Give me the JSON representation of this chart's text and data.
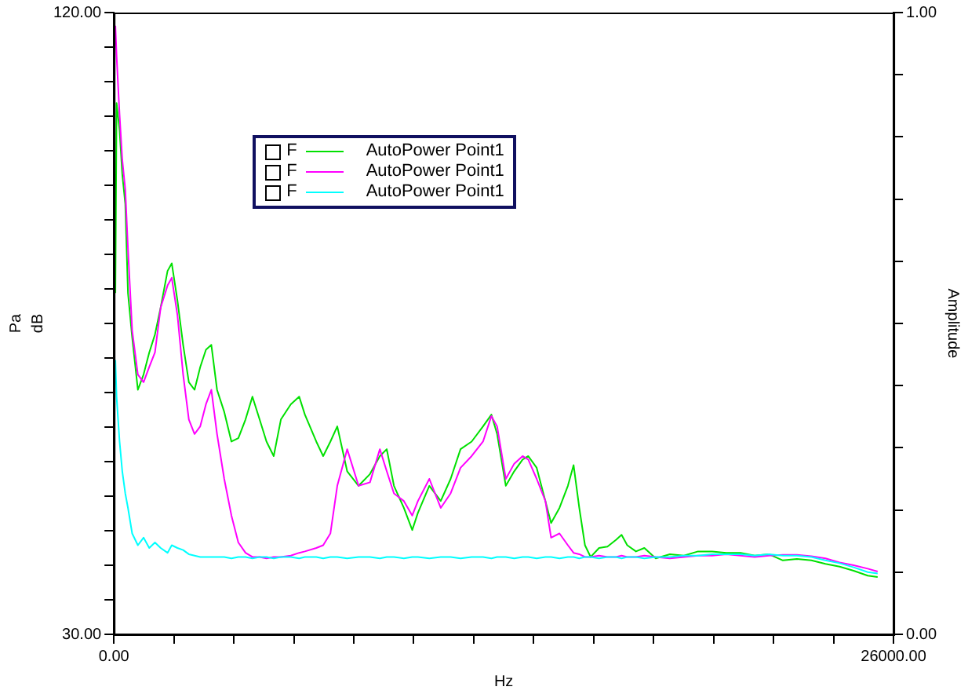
{
  "chart_data": {
    "type": "line",
    "xlabel": "Hz",
    "ylabel": "dB",
    "y2label": "Amplitude",
    "annotations": [
      "Pa",
      "F",
      "F",
      "F"
    ],
    "xlim": [
      0,
      26000
    ],
    "xticks": [
      {
        "value": 0,
        "label": "0.00"
      },
      {
        "value": 2000,
        "label": null
      },
      {
        "value": 4000,
        "label": null
      },
      {
        "value": 6000,
        "label": null
      },
      {
        "value": 8000,
        "label": null
      },
      {
        "value": 10000,
        "label": null
      },
      {
        "value": 12000,
        "label": null
      },
      {
        "value": 14000,
        "label": null
      },
      {
        "value": 16000,
        "label": null
      },
      {
        "value": 18000,
        "label": null
      },
      {
        "value": 20000,
        "label": null
      },
      {
        "value": 22000,
        "label": null
      },
      {
        "value": 24000,
        "label": null
      },
      {
        "value": 26000,
        "label": "26000.00"
      }
    ],
    "ylim": [
      30,
      120
    ],
    "yticks": [
      {
        "value": 30,
        "label": "30.00"
      },
      {
        "value": 35,
        "label": null
      },
      {
        "value": 40,
        "label": null
      },
      {
        "value": 45,
        "label": null
      },
      {
        "value": 50,
        "label": null
      },
      {
        "value": 55,
        "label": null
      },
      {
        "value": 60,
        "label": null
      },
      {
        "value": 65,
        "label": null
      },
      {
        "value": 70,
        "label": null
      },
      {
        "value": 75,
        "label": null
      },
      {
        "value": 80,
        "label": null
      },
      {
        "value": 85,
        "label": null
      },
      {
        "value": 90,
        "label": null
      },
      {
        "value": 95,
        "label": null
      },
      {
        "value": 100,
        "label": null
      },
      {
        "value": 105,
        "label": null
      },
      {
        "value": 110,
        "label": null
      },
      {
        "value": 115,
        "label": null
      },
      {
        "value": 120,
        "label": "120.00"
      }
    ],
    "y2lim": [
      0,
      1
    ],
    "y2ticks": [
      {
        "value": 0,
        "label": "0.00"
      },
      {
        "value": 0.1,
        "label": null
      },
      {
        "value": 0.2,
        "label": null
      },
      {
        "value": 0.3,
        "label": null
      },
      {
        "value": 0.4,
        "label": null
      },
      {
        "value": 0.5,
        "label": null
      },
      {
        "value": 0.6,
        "label": null
      },
      {
        "value": 0.7,
        "label": null
      },
      {
        "value": 0.8,
        "label": null
      },
      {
        "value": 0.9,
        "label": null
      },
      {
        "value": 1,
        "label": "1.00"
      }
    ],
    "grid": false,
    "legend": "top left",
    "marker": "none",
    "line_style": "solid",
    "x": [
      50,
      90,
      190,
      280,
      380,
      470,
      610,
      800,
      990,
      1180,
      1370,
      1560,
      1790,
      1930,
      2120,
      2310,
      2500,
      2690,
      2880,
      3070,
      3250,
      3440,
      3680,
      3920,
      4150,
      4390,
      4620,
      4860,
      5090,
      5330,
      5570,
      5900,
      6180,
      6370,
      6750,
      6980,
      7220,
      7450,
      7780,
      8160,
      8540,
      8870,
      9100,
      9340,
      9670,
      9950,
      10140,
      10520,
      10900,
      11230,
      11560,
      11930,
      12310,
      12590,
      12780,
      13070,
      13350,
      13630,
      13820,
      14100,
      14390,
      14580,
      14860,
      15140,
      15330,
      15520,
      15710,
      15900,
      16180,
      16460,
      16750,
      16930,
      17120,
      17410,
      17690,
      18070,
      18540,
      19010,
      19480,
      19950,
      20420,
      20900,
      21370,
      21840,
      22310,
      22780,
      23260,
      23730,
      24200,
      24670,
      25140,
      25470
    ],
    "series": [
      {
        "name": "AutoPower Point1",
        "color": "#00e000",
        "values": [
          79.4,
          106.9,
          103.0,
          96.6,
          92.3,
          79.4,
          73.0,
          65.4,
          67.6,
          70.8,
          73.4,
          77.3,
          82.6,
          83.7,
          78.3,
          71.9,
          66.5,
          65.4,
          68.7,
          71.2,
          71.9,
          65.4,
          62.2,
          57.9,
          58.4,
          61.1,
          64.4,
          61.1,
          57.9,
          55.8,
          61.1,
          63.3,
          64.4,
          61.8,
          57.9,
          55.8,
          57.9,
          60.1,
          53.6,
          51.5,
          53.2,
          55.8,
          56.8,
          51.5,
          48.3,
          45.1,
          47.6,
          51.5,
          49.3,
          52.5,
          56.8,
          57.9,
          60.1,
          61.8,
          59.0,
          51.5,
          53.6,
          55.3,
          55.8,
          54.1,
          49.3,
          46.1,
          48.3,
          51.5,
          54.5,
          48.3,
          42.9,
          41.2,
          42.5,
          42.7,
          43.7,
          44.4,
          42.9,
          42.0,
          42.5,
          41.0,
          41.6,
          41.4,
          42.0,
          42.0,
          41.8,
          41.8,
          41.4,
          41.6,
          40.7,
          40.9,
          40.7,
          40.2,
          39.8,
          39.2,
          38.5,
          38.3
        ]
      },
      {
        "name": "AutoPower Point1",
        "color": "#ff00ff",
        "values": [
          118.1,
          113.8,
          105.2,
          98.7,
          94.4,
          85.8,
          74.0,
          67.6,
          66.5,
          68.7,
          70.8,
          77.3,
          80.5,
          81.6,
          76.2,
          67.6,
          61.1,
          59.0,
          60.1,
          63.3,
          65.4,
          59.0,
          52.5,
          47.2,
          43.3,
          41.8,
          41.2,
          41.2,
          41.0,
          41.2,
          41.2,
          41.4,
          41.8,
          42.0,
          42.5,
          42.9,
          44.6,
          51.5,
          56.8,
          51.5,
          52.0,
          56.8,
          53.6,
          50.4,
          49.3,
          47.2,
          49.3,
          52.5,
          48.3,
          50.4,
          54.1,
          55.8,
          57.9,
          61.6,
          60.1,
          52.5,
          54.7,
          55.8,
          55.3,
          52.5,
          49.3,
          44.0,
          44.6,
          42.9,
          41.8,
          41.6,
          41.2,
          41.2,
          41.4,
          41.2,
          41.2,
          41.4,
          41.2,
          41.2,
          41.4,
          41.2,
          41.0,
          41.2,
          41.4,
          41.4,
          41.6,
          41.4,
          41.2,
          41.4,
          41.5,
          41.5,
          41.3,
          41.0,
          40.4,
          40.0,
          39.5,
          39.1
        ]
      },
      {
        "name": "AutoPower Point1",
        "color": "#00ffff",
        "values": [
          69.7,
          64.4,
          57.9,
          53.6,
          50.4,
          48.3,
          44.6,
          42.9,
          44.0,
          42.5,
          43.3,
          42.5,
          41.8,
          42.9,
          42.5,
          42.2,
          41.6,
          41.4,
          41.2,
          41.2,
          41.2,
          41.2,
          41.2,
          41.0,
          41.2,
          41.2,
          41.0,
          41.2,
          41.2,
          41.0,
          41.2,
          41.2,
          41.0,
          41.2,
          41.2,
          41.0,
          41.2,
          41.2,
          41.0,
          41.2,
          41.2,
          41.0,
          41.2,
          41.2,
          41.0,
          41.2,
          41.2,
          41.0,
          41.2,
          41.2,
          41.0,
          41.2,
          41.2,
          41.0,
          41.2,
          41.2,
          41.0,
          41.2,
          41.2,
          41.0,
          41.2,
          41.2,
          41.0,
          41.2,
          41.2,
          41.0,
          41.2,
          41.2,
          41.0,
          41.2,
          41.2,
          41.0,
          41.2,
          41.2,
          41.0,
          41.2,
          41.2,
          41.4,
          41.4,
          41.6,
          41.6,
          41.6,
          41.4,
          41.6,
          41.4,
          41.4,
          41.2,
          40.7,
          40.3,
          39.7,
          39.0,
          38.8
        ]
      }
    ]
  }
}
